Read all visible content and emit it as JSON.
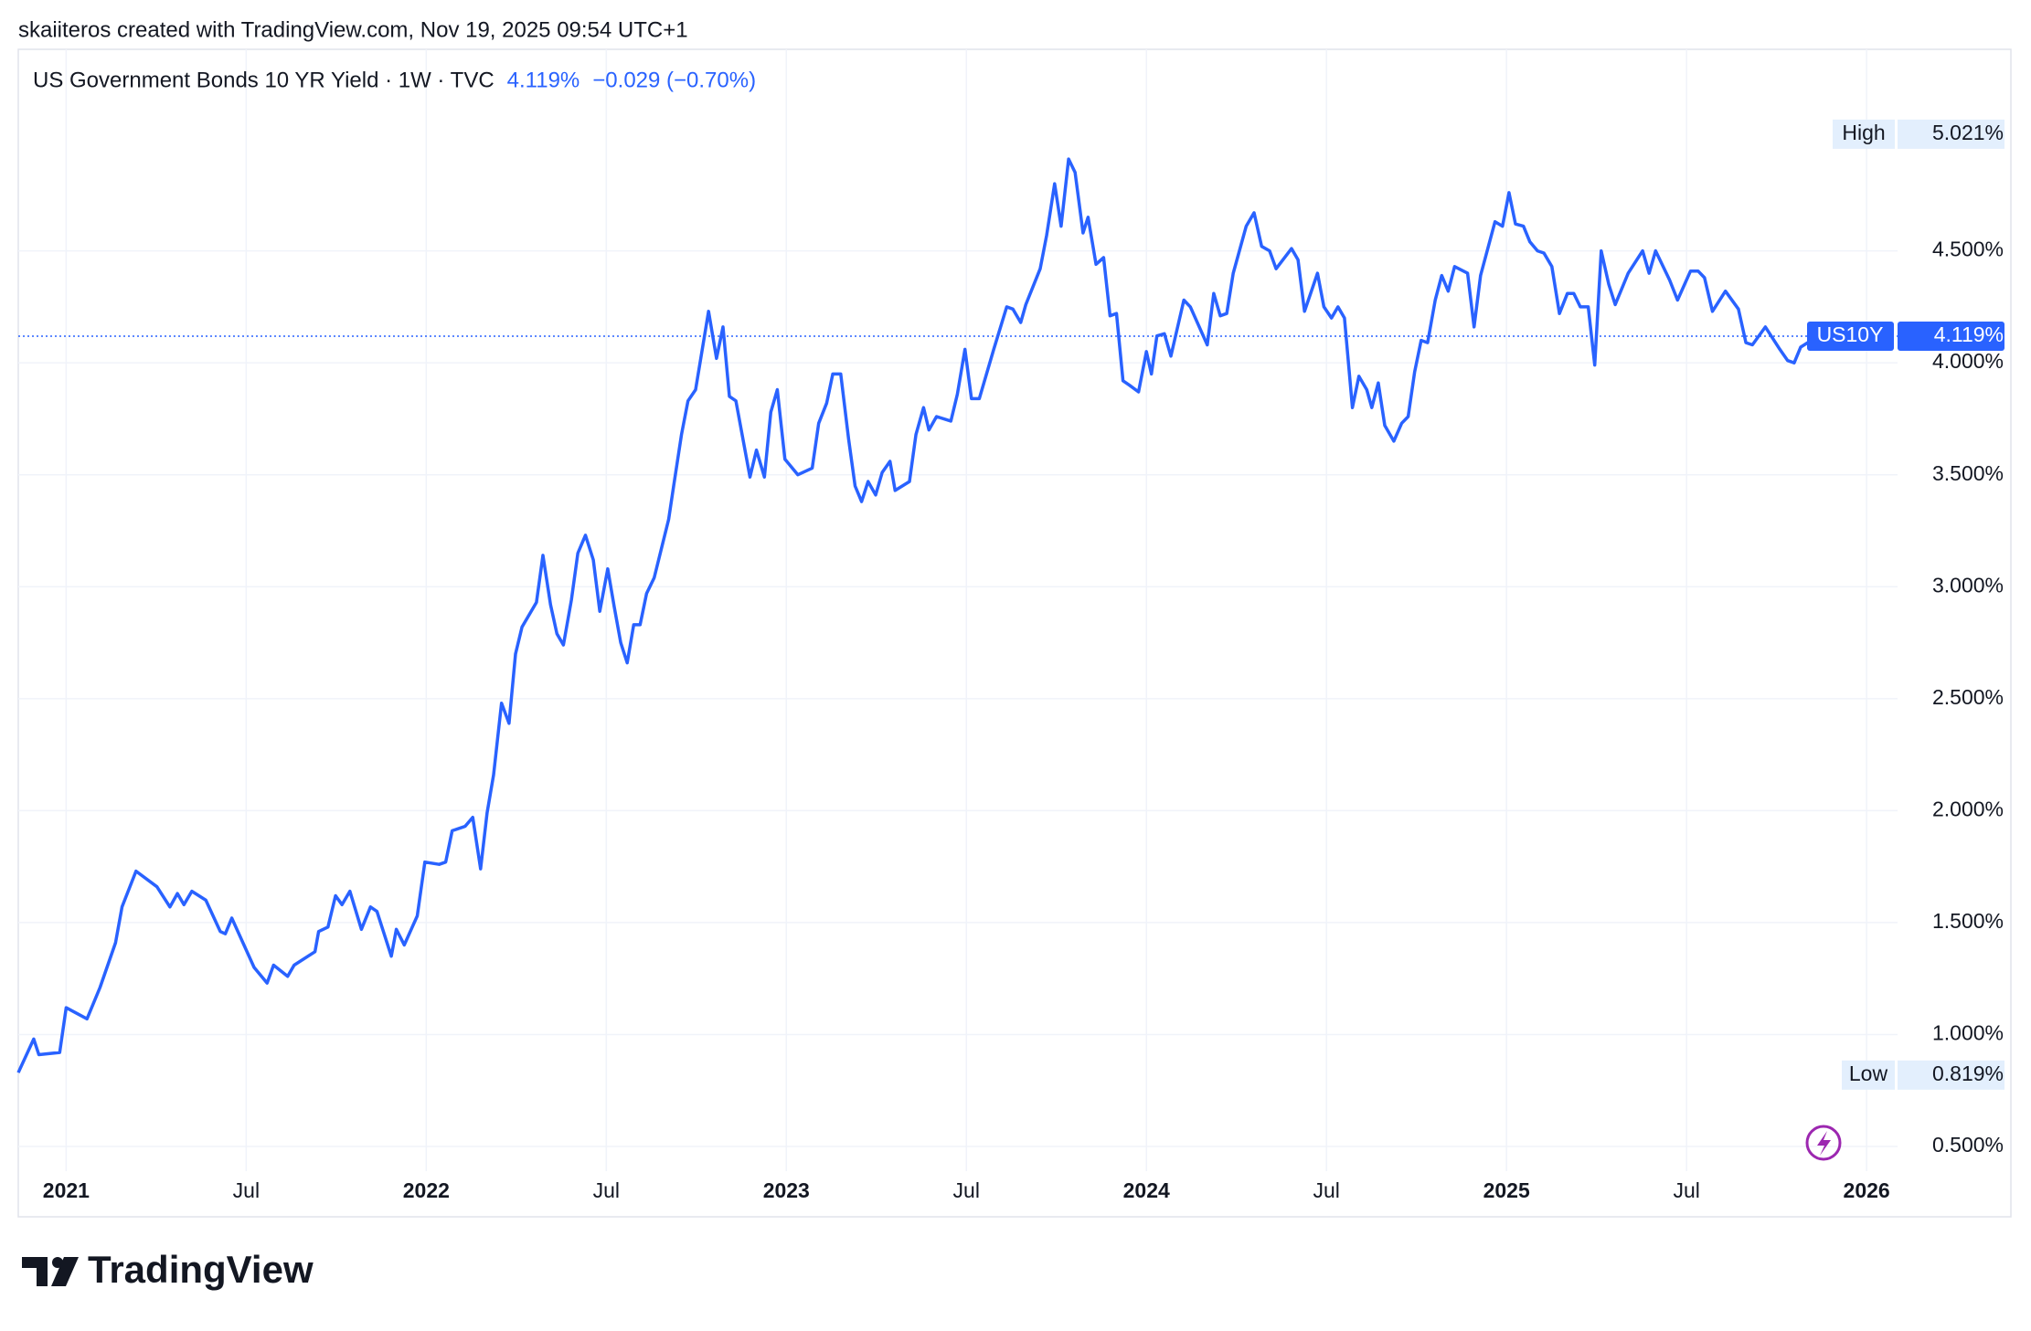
{
  "chart_data": {
    "type": "line",
    "credit": "skaiiteros created with TradingView.com, Nov 19, 2025 09:54 UTC+1",
    "title": "US Government Bonds 10 YR Yield · 1W · TVC",
    "last_value": 4.119,
    "last_value_label": "4.119%",
    "change": "−0.029 (−0.70%)",
    "high": {
      "name": "High",
      "value": 5.021,
      "label": "5.021%"
    },
    "low": {
      "name": "Low",
      "value": 0.819,
      "label": "0.819%"
    },
    "logo": "TradingView",
    "grid": true,
    "xlim": [
      2020.867,
      2026.086
    ],
    "ylim": [
      0.39,
      5.4
    ],
    "xticks": [
      {
        "value": 2021,
        "label": "2021"
      },
      {
        "value": 2021.5,
        "label": "Jul"
      },
      {
        "value": 2022,
        "label": "2022"
      },
      {
        "value": 2022.5,
        "label": "Jul"
      },
      {
        "value": 2023,
        "label": "2023"
      },
      {
        "value": 2023.5,
        "label": "Jul"
      },
      {
        "value": 2024,
        "label": "2024"
      },
      {
        "value": 2024.5,
        "label": "Jul"
      },
      {
        "value": 2025,
        "label": "2025"
      },
      {
        "value": 2025.5,
        "label": "Jul"
      },
      {
        "value": 2026,
        "label": "2026"
      }
    ],
    "yticks": [
      {
        "value": 0.5,
        "label": "0.500%"
      },
      {
        "value": 1.0,
        "label": "1.000%"
      },
      {
        "value": 1.5,
        "label": "1.500%"
      },
      {
        "value": 2.0,
        "label": "2.000%"
      },
      {
        "value": 2.5,
        "label": "2.500%"
      },
      {
        "value": 3.0,
        "label": "3.000%"
      },
      {
        "value": 3.5,
        "label": "3.500%"
      },
      {
        "value": 4.0,
        "label": "4.000%"
      },
      {
        "value": 4.5,
        "label": "4.500%"
      }
    ],
    "x": [
      2020.867,
      2020.91,
      2020.924,
      2020.982,
      2021.0,
      2021.058,
      2021.094,
      2021.137,
      2021.155,
      2021.194,
      2021.252,
      2021.288,
      2021.309,
      2021.327,
      2021.349,
      2021.388,
      2021.428,
      2021.442,
      2021.46,
      2021.522,
      2021.558,
      2021.576,
      2021.615,
      2021.633,
      2021.691,
      2021.701,
      2021.727,
      2021.748,
      2021.766,
      2021.788,
      2021.82,
      2021.845,
      2021.863,
      2021.903,
      2021.917,
      2021.939,
      2021.975,
      2021.996,
      2022.036,
      2022.054,
      2022.072,
      2022.108,
      2022.129,
      2022.151,
      2022.169,
      2022.187,
      2022.209,
      2022.23,
      2022.248,
      2022.266,
      2022.306,
      2022.324,
      2022.345,
      2022.363,
      2022.381,
      2022.403,
      2022.421,
      2022.442,
      2022.464,
      2022.482,
      2022.504,
      2022.522,
      2022.54,
      2022.558,
      2022.576,
      2022.594,
      2022.612,
      2022.633,
      2022.673,
      2022.687,
      2022.709,
      2022.727,
      2022.748,
      2022.784,
      2022.806,
      2022.824,
      2022.842,
      2022.86,
      2022.899,
      2022.917,
      2022.939,
      2022.957,
      2022.975,
      2022.996,
      2023.032,
      2023.072,
      2023.09,
      2023.112,
      2023.129,
      2023.151,
      2023.173,
      2023.191,
      2023.209,
      2023.227,
      2023.248,
      2023.266,
      2023.288,
      2023.302,
      2023.342,
      2023.36,
      2023.381,
      2023.396,
      2023.417,
      2023.457,
      2023.475,
      2023.496,
      2023.514,
      2023.536,
      2023.576,
      2023.612,
      2023.629,
      2023.651,
      2023.665,
      2023.705,
      2023.723,
      2023.745,
      2023.763,
      2023.784,
      2023.802,
      2023.824,
      2023.838,
      2023.86,
      2023.881,
      2023.899,
      2023.917,
      2023.935,
      2023.953,
      2023.978,
      2024.0,
      2024.014,
      2024.029,
      2024.05,
      2024.068,
      2024.104,
      2024.122,
      2024.169,
      2024.187,
      2024.205,
      2024.223,
      2024.241,
      2024.277,
      2024.299,
      2024.32,
      2024.342,
      2024.36,
      2024.403,
      2024.421,
      2024.439,
      2024.475,
      2024.493,
      2024.514,
      2024.532,
      2024.55,
      2024.572,
      2024.59,
      2024.612,
      2024.626,
      2024.644,
      2024.662,
      2024.687,
      2024.709,
      2024.727,
      2024.745,
      2024.763,
      2024.781,
      2024.802,
      2024.82,
      2024.838,
      2024.856,
      2024.892,
      2024.91,
      2024.928,
      2024.968,
      2024.989,
      2025.007,
      2025.025,
      2025.047,
      2025.065,
      2025.086,
      2025.104,
      2025.126,
      2025.147,
      2025.169,
      2025.187,
      2025.205,
      2025.227,
      2025.245,
      2025.263,
      2025.284,
      2025.302,
      2025.338,
      2025.378,
      2025.396,
      2025.414,
      2025.453,
      2025.475,
      2025.511,
      2025.532,
      2025.55,
      2025.572,
      2025.608,
      2025.644,
      2025.665,
      2025.683,
      2025.719,
      2025.759,
      2025.781,
      2025.799,
      2025.817,
      2025.856
    ],
    "series": [
      {
        "name": "US10Y",
        "color": "#2962ff",
        "values": [
          0.83,
          0.98,
          0.91,
          0.92,
          1.12,
          1.07,
          1.21,
          1.41,
          1.57,
          1.73,
          1.66,
          1.57,
          1.63,
          1.58,
          1.64,
          1.6,
          1.46,
          1.45,
          1.52,
          1.3,
          1.23,
          1.31,
          1.26,
          1.31,
          1.37,
          1.46,
          1.48,
          1.62,
          1.58,
          1.64,
          1.47,
          1.57,
          1.55,
          1.35,
          1.47,
          1.4,
          1.53,
          1.77,
          1.76,
          1.77,
          1.91,
          1.93,
          1.97,
          1.74,
          1.99,
          2.16,
          2.48,
          2.39,
          2.7,
          2.82,
          2.93,
          3.14,
          2.92,
          2.79,
          2.74,
          2.94,
          3.15,
          3.23,
          3.12,
          2.89,
          3.08,
          2.91,
          2.75,
          2.66,
          2.83,
          2.83,
          2.97,
          3.04,
          3.3,
          3.45,
          3.68,
          3.83,
          3.88,
          4.23,
          4.02,
          4.16,
          3.85,
          3.83,
          3.49,
          3.61,
          3.49,
          3.78,
          3.88,
          3.57,
          3.5,
          3.53,
          3.73,
          3.82,
          3.95,
          3.95,
          3.66,
          3.45,
          3.38,
          3.47,
          3.41,
          3.51,
          3.56,
          3.43,
          3.47,
          3.68,
          3.8,
          3.7,
          3.76,
          3.74,
          3.86,
          4.06,
          3.84,
          3.84,
          4.06,
          4.25,
          4.24,
          4.18,
          4.26,
          4.42,
          4.57,
          4.8,
          4.61,
          4.91,
          4.85,
          4.58,
          4.65,
          4.44,
          4.47,
          4.21,
          4.22,
          3.92,
          3.9,
          3.87,
          4.05,
          3.95,
          4.12,
          4.13,
          4.03,
          4.28,
          4.25,
          4.08,
          4.31,
          4.21,
          4.22,
          4.4,
          4.61,
          4.67,
          4.52,
          4.5,
          4.42,
          4.51,
          4.46,
          4.23,
          4.4,
          4.25,
          4.2,
          4.25,
          4.2,
          3.8,
          3.94,
          3.88,
          3.8,
          3.91,
          3.72,
          3.65,
          3.73,
          3.76,
          3.96,
          4.1,
          4.09,
          4.28,
          4.39,
          4.32,
          4.43,
          4.4,
          4.16,
          4.39,
          4.63,
          4.61,
          4.76,
          4.62,
          4.61,
          4.54,
          4.5,
          4.49,
          4.43,
          4.22,
          4.31,
          4.31,
          4.25,
          4.25,
          3.99,
          4.5,
          4.35,
          4.26,
          4.4,
          4.5,
          4.4,
          4.5,
          4.37,
          4.28,
          4.41,
          4.41,
          4.38,
          4.23,
          4.32,
          4.24,
          4.09,
          4.08,
          4.16,
          4.06,
          4.01,
          4.0,
          4.07,
          4.11
        ]
      }
    ]
  }
}
